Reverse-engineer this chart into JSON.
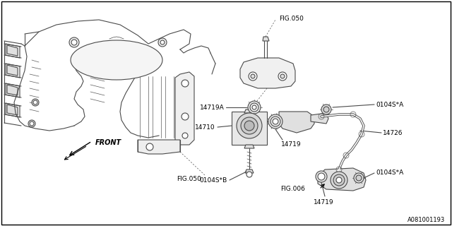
{
  "bg_color": "#ffffff",
  "line_color": "#4a4a4a",
  "thin_color": "#5a5a5a",
  "label_color": "#000000",
  "watermark": "A081001193",
  "labels": {
    "FIG050_top": "FIG.050",
    "FIG050_bot": "FIG.050",
    "FIG006": "FIG.006",
    "14719A": "14719A",
    "14710": "14710",
    "14719_mid": "14719",
    "14726": "14726",
    "0104SA_top": "0104S*A",
    "0104SA_bot": "0104S*A",
    "0104SB": "0104S*B",
    "14719_bot": "14719",
    "FRONT": "FRONT"
  }
}
